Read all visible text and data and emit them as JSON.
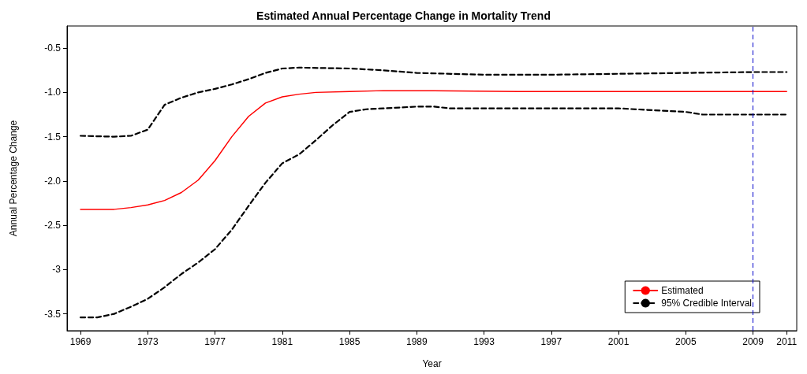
{
  "chart_data": {
    "type": "line",
    "title": "Estimated Annual Percentage Change in Mortality Trend",
    "xlabel": "Year",
    "ylabel": "Annual Percentage Change",
    "series": [
      {
        "name": "Estimated",
        "color": "#ff0000",
        "line_style": "solid",
        "x": [
          1969,
          1971,
          1972,
          1973,
          1974,
          1975,
          1976,
          1977,
          1978,
          1979,
          1980,
          1981,
          1982,
          1983,
          1985,
          1987,
          1990,
          1995,
          2005,
          2011
        ],
        "values": [
          -2.32,
          -2.32,
          -2.3,
          -2.27,
          -2.22,
          -2.13,
          -1.99,
          -1.77,
          -1.5,
          -1.27,
          -1.12,
          -1.05,
          -1.02,
          -1.0,
          -0.99,
          -0.98,
          -0.98,
          -0.99,
          -0.99,
          -0.99
        ]
      },
      {
        "name": "95% Credible Interval",
        "color": "#000000",
        "line_style": "dashed",
        "x": [
          1969,
          1971,
          1972,
          1973,
          1974,
          1975,
          1976,
          1977,
          1978,
          1979,
          1980,
          1981,
          1982,
          1985,
          1987,
          1989,
          1993,
          1997,
          2001,
          2005,
          2009,
          2011
        ],
        "values": [
          -1.49,
          -1.5,
          -1.49,
          -1.42,
          -1.14,
          -1.06,
          -1.0,
          -0.96,
          -0.91,
          -0.85,
          -0.78,
          -0.73,
          -0.72,
          -0.73,
          -0.75,
          -0.78,
          -0.8,
          -0.8,
          -0.79,
          -0.78,
          -0.77,
          -0.77
        ]
      },
      {
        "color": "#000000",
        "line_style": "dashed",
        "x": [
          1969,
          1970,
          1971,
          1972,
          1973,
          1974,
          1975,
          1976,
          1977,
          1978,
          1979,
          1980,
          1981,
          1982,
          1983,
          1984,
          1985,
          1986,
          1987,
          1989,
          1990,
          1991,
          1995,
          2001,
          2003,
          2005,
          2006,
          2009,
          2011
        ],
        "values": [
          -3.54,
          -3.54,
          -3.5,
          -3.42,
          -3.33,
          -3.2,
          -3.05,
          -2.92,
          -2.77,
          -2.55,
          -2.28,
          -2.02,
          -1.8,
          -1.7,
          -1.54,
          -1.37,
          -1.22,
          -1.19,
          -1.18,
          -1.16,
          -1.16,
          -1.18,
          -1.18,
          -1.18,
          -1.2,
          -1.22,
          -1.25,
          -1.25,
          -1.25
        ]
      }
    ],
    "xlim": [
      1968.2,
      2011.6
    ],
    "xticks": [
      1969,
      1973,
      1977,
      1981,
      1985,
      1989,
      1993,
      1997,
      2001,
      2005,
      2009,
      2011
    ],
    "ylim": [
      -3.69,
      -0.25
    ],
    "yticks": [
      {
        "value": -0.5,
        "label": "-0.5"
      },
      {
        "value": -1,
        "label": "-1.0"
      },
      {
        "value": -1.5,
        "label": "-1.5"
      },
      {
        "value": -2,
        "label": "-2.0"
      },
      {
        "value": -2.5,
        "label": "-2.5"
      },
      -3,
      -3.5
    ],
    "ref_lines": [
      {
        "axis": "x",
        "value": 2009,
        "color": "#0000cc",
        "line_style": "dashed"
      }
    ],
    "grid": false,
    "legend": "bottom right",
    "marker": "none"
  }
}
